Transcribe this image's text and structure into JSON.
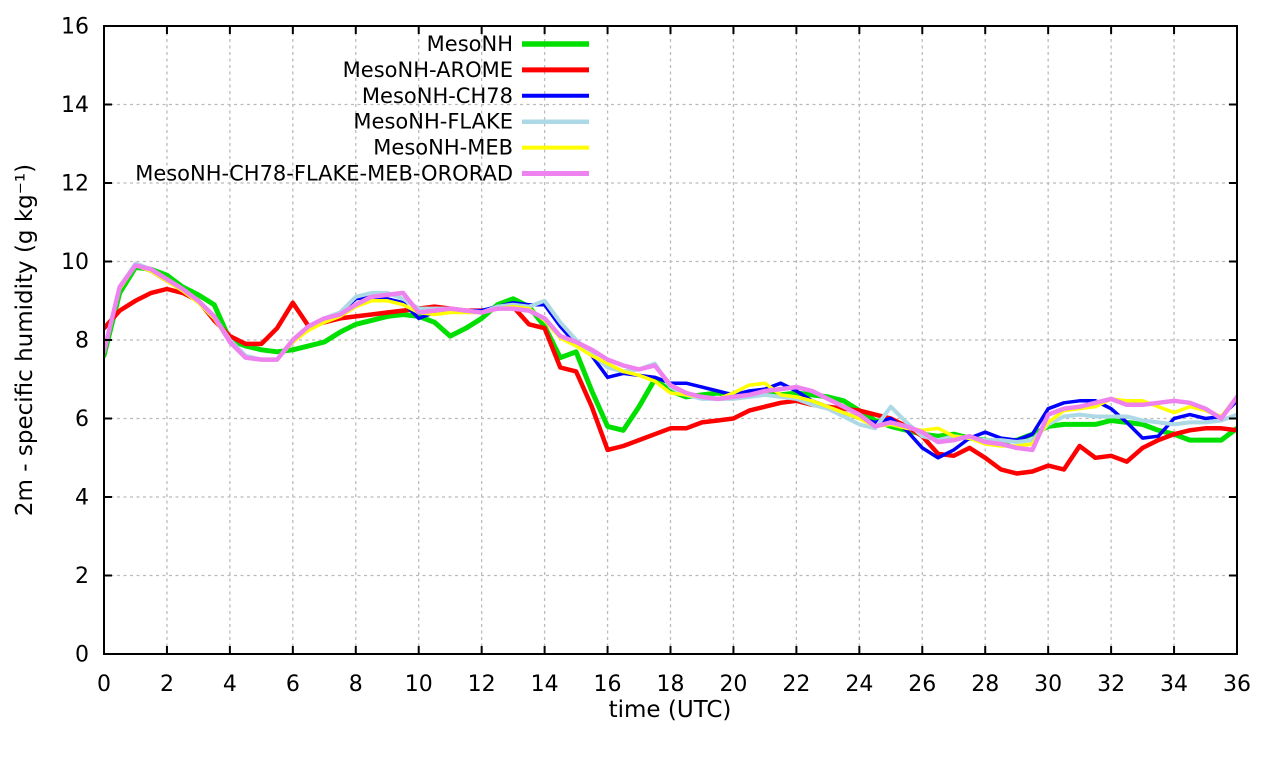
{
  "chart_data": {
    "type": "line",
    "title": "",
    "xlabel": "time (UTC)",
    "ylabel": "2m - specific humidity (g kg⁻¹)",
    "xlim": [
      0,
      36
    ],
    "ylim": [
      0,
      16
    ],
    "xticks": [
      0,
      2,
      4,
      6,
      8,
      10,
      12,
      14,
      16,
      18,
      20,
      22,
      24,
      26,
      28,
      30,
      32,
      34,
      36
    ],
    "yticks": [
      0,
      2,
      4,
      6,
      8,
      10,
      12,
      14,
      16
    ],
    "grid": true,
    "legend_position": "top-center-inside",
    "x_start": 0,
    "x_step": 0.5,
    "colors": {
      "background": "#ffffff",
      "axis": "#000000",
      "grid": "#bbbbbb",
      "text": "#000000"
    },
    "series": [
      {
        "name": "MesoNH",
        "color": "#00e000",
        "line_width": 5,
        "values": [
          7.6,
          9.2,
          9.85,
          9.8,
          9.65,
          9.35,
          9.15,
          8.9,
          8.0,
          7.85,
          7.75,
          7.7,
          7.75,
          7.85,
          7.95,
          8.2,
          8.4,
          8.5,
          8.6,
          8.65,
          8.6,
          8.45,
          8.1,
          8.3,
          8.55,
          8.9,
          9.05,
          8.85,
          8.35,
          7.55,
          7.7,
          6.7,
          5.8,
          5.7,
          6.3,
          7.0,
          6.7,
          6.55,
          6.6,
          6.65,
          6.6,
          6.6,
          6.65,
          6.6,
          6.65,
          6.6,
          6.55,
          6.45,
          6.2,
          5.95,
          5.8,
          5.7,
          5.6,
          5.55,
          5.6,
          5.5,
          5.45,
          5.4,
          5.45,
          5.6,
          5.8,
          5.85,
          5.85,
          5.85,
          5.95,
          5.9,
          5.85,
          5.7,
          5.6,
          5.45,
          5.45,
          5.45,
          5.75
        ]
      },
      {
        "name": "MesoNH-AROME",
        "color": "#ff0000",
        "line_width": 4.5,
        "values": [
          8.3,
          8.75,
          9.0,
          9.2,
          9.3,
          9.2,
          9.0,
          8.5,
          8.1,
          7.9,
          7.9,
          8.3,
          8.95,
          8.35,
          8.45,
          8.55,
          8.6,
          8.65,
          8.7,
          8.75,
          8.8,
          8.85,
          8.8,
          8.75,
          8.75,
          8.8,
          8.85,
          8.4,
          8.3,
          7.3,
          7.2,
          6.3,
          5.2,
          5.3,
          5.45,
          5.6,
          5.75,
          5.75,
          5.9,
          5.95,
          6.0,
          6.2,
          6.3,
          6.4,
          6.45,
          6.35,
          6.3,
          6.25,
          6.2,
          6.1,
          6.0,
          5.8,
          5.55,
          5.1,
          5.05,
          5.25,
          5.0,
          4.7,
          4.6,
          4.65,
          4.8,
          4.7,
          5.3,
          5.0,
          5.05,
          4.9,
          5.25,
          5.45,
          5.6,
          5.7,
          5.75,
          5.75,
          5.7
        ]
      },
      {
        "name": "MesoNH-CH78",
        "color": "#0000ff",
        "line_width": 3.5,
        "values": [
          7.7,
          9.3,
          9.9,
          9.75,
          9.5,
          9.3,
          9.0,
          8.6,
          8.0,
          7.6,
          7.5,
          7.5,
          7.95,
          8.3,
          8.5,
          8.7,
          9.05,
          9.1,
          9.05,
          8.95,
          8.55,
          8.7,
          8.8,
          8.75,
          8.75,
          8.85,
          8.95,
          8.9,
          8.9,
          8.35,
          7.9,
          7.6,
          7.05,
          7.15,
          7.1,
          7.05,
          6.9,
          6.9,
          6.8,
          6.7,
          6.6,
          6.7,
          6.75,
          6.9,
          6.7,
          6.45,
          6.3,
          6.15,
          6.0,
          5.9,
          6.0,
          5.7,
          5.25,
          5.0,
          5.2,
          5.5,
          5.65,
          5.5,
          5.45,
          5.6,
          6.25,
          6.4,
          6.45,
          6.45,
          6.25,
          5.9,
          5.5,
          5.55,
          6.0,
          6.1,
          6.0,
          6.05,
          6.45
        ]
      },
      {
        "name": "MesoNH-FLAKE",
        "color": "#add8e6",
        "line_width": 4,
        "values": [
          7.7,
          9.35,
          9.95,
          9.8,
          9.55,
          9.3,
          9.0,
          8.6,
          8.0,
          7.6,
          7.5,
          7.5,
          8.0,
          8.35,
          8.55,
          8.7,
          9.1,
          9.2,
          9.2,
          9.05,
          8.8,
          8.8,
          8.8,
          8.75,
          8.7,
          8.85,
          8.9,
          8.85,
          9.0,
          8.45,
          8.0,
          7.65,
          7.3,
          7.2,
          7.25,
          7.4,
          6.8,
          6.6,
          6.5,
          6.5,
          6.5,
          6.55,
          6.6,
          6.55,
          6.5,
          6.35,
          6.25,
          6.05,
          5.85,
          5.75,
          6.3,
          5.9,
          5.55,
          5.45,
          5.55,
          5.5,
          5.45,
          5.45,
          5.4,
          5.45,
          5.85,
          6.05,
          6.1,
          6.05,
          6.05,
          6.05,
          5.95,
          5.9,
          5.85,
          5.9,
          5.9,
          5.95,
          6.1
        ]
      },
      {
        "name": "MesoNH-MEB",
        "color": "#ffff00",
        "line_width": 3.5,
        "values": [
          7.7,
          9.3,
          9.9,
          9.75,
          9.5,
          9.25,
          8.95,
          8.55,
          7.95,
          7.55,
          7.5,
          7.5,
          7.95,
          8.25,
          8.45,
          8.6,
          8.85,
          9.0,
          9.0,
          8.9,
          8.7,
          8.65,
          8.7,
          8.7,
          8.7,
          8.8,
          8.85,
          8.8,
          8.5,
          8.05,
          7.85,
          7.6,
          7.4,
          7.2,
          7.1,
          6.95,
          6.65,
          6.6,
          6.55,
          6.5,
          6.65,
          6.85,
          6.9,
          6.6,
          6.55,
          6.45,
          6.3,
          6.15,
          6.0,
          5.8,
          5.85,
          5.75,
          5.7,
          5.75,
          5.55,
          5.5,
          5.35,
          5.3,
          5.3,
          5.35,
          5.9,
          6.2,
          6.25,
          6.3,
          6.5,
          6.45,
          6.45,
          6.3,
          6.15,
          6.3,
          6.2,
          6.05,
          6.55
        ]
      },
      {
        "name": "MesoNH-CH78-FLAKE-MEB-ORORAD",
        "color": "#ee82ee",
        "line_width": 4.5,
        "values": [
          7.7,
          9.35,
          9.9,
          9.8,
          9.55,
          9.3,
          9.0,
          8.6,
          7.95,
          7.55,
          7.5,
          7.5,
          8.0,
          8.35,
          8.55,
          8.65,
          8.9,
          9.1,
          9.15,
          9.2,
          8.7,
          8.75,
          8.8,
          8.75,
          8.7,
          8.8,
          8.8,
          8.75,
          8.55,
          8.1,
          7.95,
          7.75,
          7.5,
          7.35,
          7.25,
          7.35,
          6.85,
          6.65,
          6.55,
          6.5,
          6.55,
          6.6,
          6.7,
          6.75,
          6.8,
          6.7,
          6.5,
          6.3,
          6.1,
          5.8,
          5.9,
          5.8,
          5.65,
          5.4,
          5.45,
          5.55,
          5.4,
          5.35,
          5.25,
          5.2,
          6.1,
          6.25,
          6.3,
          6.4,
          6.5,
          6.35,
          6.35,
          6.4,
          6.45,
          6.4,
          6.25,
          6.0,
          6.55
        ]
      }
    ]
  }
}
